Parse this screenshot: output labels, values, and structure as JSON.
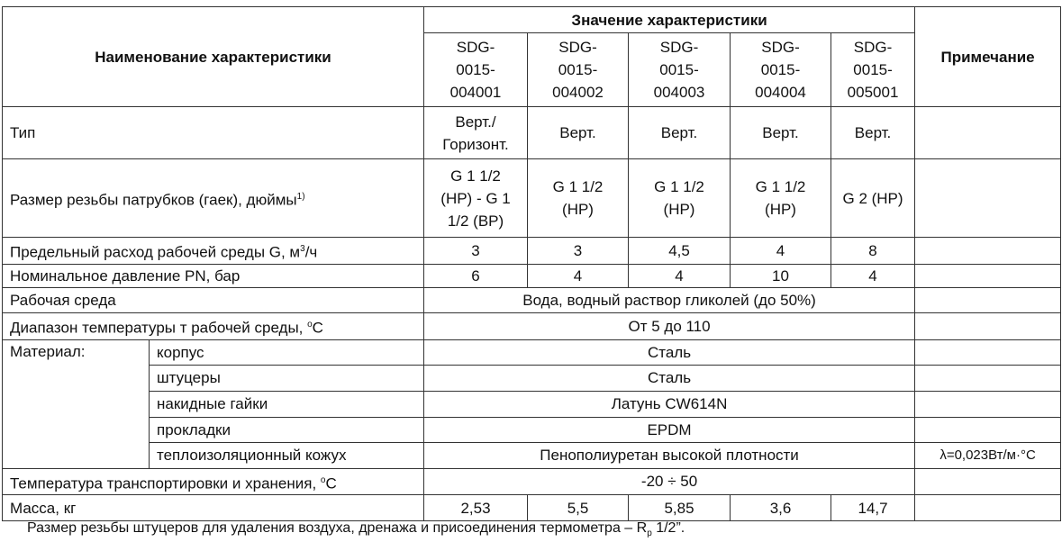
{
  "header": {
    "name_col": "Наименование характеристики",
    "value_group": "Значение характеристики",
    "note_col": "Примечание",
    "models": [
      "SDG-\n0015-\n004001",
      "SDG-\n0015-\n004002",
      "SDG-\n0015-\n004003",
      "SDG-\n0015-\n004004",
      "SDG-\n0015-\n005001"
    ]
  },
  "rows": {
    "type": {
      "label": "Тип",
      "values": [
        "Верт./\nГоризонт.",
        "Верт.",
        "Верт.",
        "Верт.",
        "Верт."
      ]
    },
    "thread": {
      "label": "Размер резьбы патрубков (гаек), дюймы",
      "sup": "1)",
      "values": [
        "G 1 1/2\n(НР) - G 1\n1/2 (ВР)",
        "G 1 1/2\n(НР)",
        "G 1 1/2\n(НР)",
        "G 1 1/2\n(НР)",
        "G 2 (НР)"
      ]
    },
    "flow": {
      "label": "Предельный расход  рабочей среды G, м",
      "sup": "3",
      "label_tail": "/ч",
      "values": [
        "3",
        "3",
        "4,5",
        "4",
        "8"
      ]
    },
    "pressure": {
      "label": "Номинальное давление PN, бар",
      "values": [
        "6",
        "4",
        "4",
        "10",
        "4"
      ]
    },
    "medium": {
      "label": "Рабочая среда",
      "value": "Вода, водный раствор гликолей (до 50%)"
    },
    "temp_range": {
      "label": "Диапазон температуры т  рабочей среды, ",
      "sup": "o",
      "label_tail": "C",
      "value": "От 5 до 110"
    },
    "material": {
      "label": "Материал:",
      "items": [
        {
          "label": "корпус",
          "value": "Сталь",
          "note": ""
        },
        {
          "label": "штуцеры",
          "value": "Сталь",
          "note": ""
        },
        {
          "label": "накидные гайки",
          "value": "Латунь CW614N",
          "note": ""
        },
        {
          "label": "прокладки",
          "value": "EPDM",
          "note": ""
        },
        {
          "label": "теплоизоляционный кожух",
          "value": "Пенополиуретан высокой плотности",
          "note": "λ=0,023Вт/м·°С"
        }
      ]
    },
    "storage_temp": {
      "label": "Температура транспортировки и хранения, ",
      "sup": "o",
      "label_tail": "C",
      "value": "-20 ÷ 50"
    },
    "mass": {
      "label": "Масса, кг",
      "values": [
        "2,53",
        "5,5",
        "5,85",
        "3,6",
        "14,7"
      ]
    }
  },
  "footnote": {
    "text": "Размер резьбы штуцеров для удаления воздуха, дренажа и присоединения термометра – R",
    "sub": "p",
    "tail": " 1/2”."
  }
}
